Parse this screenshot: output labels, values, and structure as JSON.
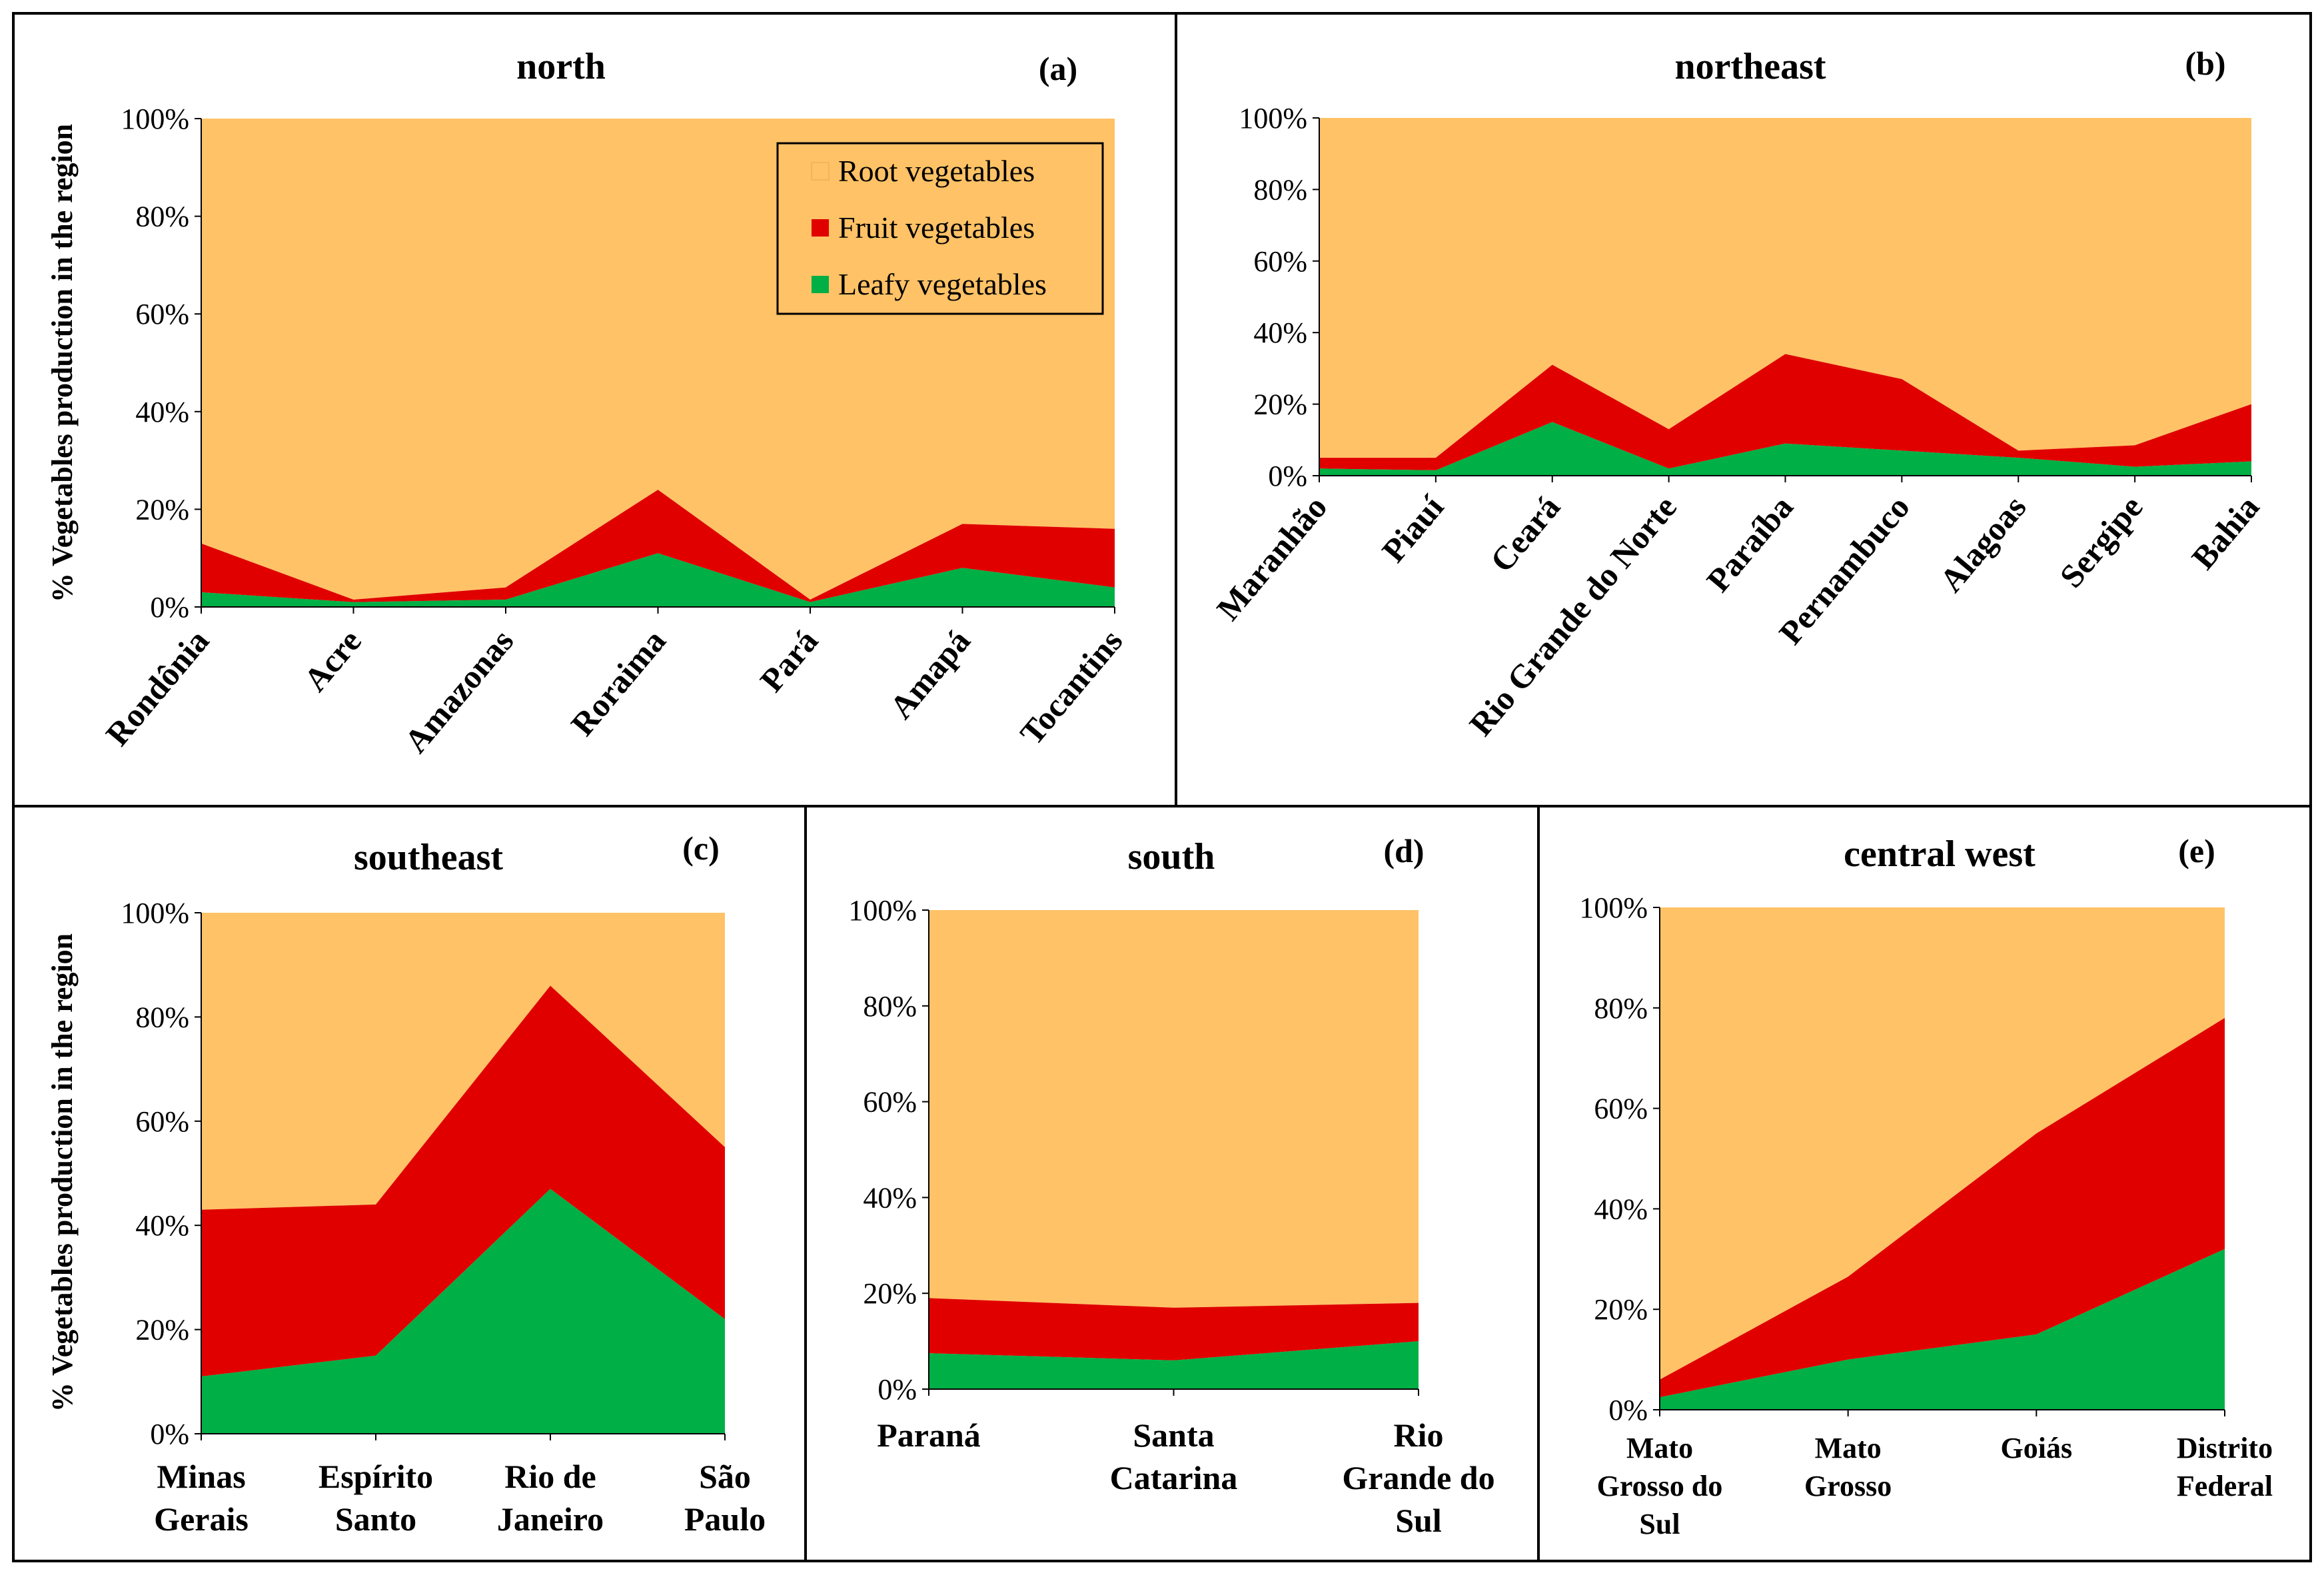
{
  "colors": {
    "root": "#FFC266",
    "fruit": "#E00000",
    "leafy": "#00AF45",
    "border": "#000000"
  },
  "legend": {
    "entries": [
      {
        "label": "Root vegetables",
        "color": "#FFC266"
      },
      {
        "label": "Fruit vegetables",
        "color": "#E00000"
      },
      {
        "label": "Leafy vegetables",
        "color": "#00AF45"
      }
    ]
  },
  "chart_data": [
    {
      "id": "a",
      "type": "area",
      "stacked": true,
      "title": "north",
      "panel_label": "(a)",
      "ylabel": "% Vegetables production  in the region",
      "ylim": [
        0,
        100
      ],
      "yticks": [
        "0%",
        "20%",
        "40%",
        "60%",
        "80%",
        "100%"
      ],
      "categories": [
        "Rondônia",
        "Acre",
        "Amazonas",
        "Roraima",
        "Pará",
        "Amapá",
        "Tocantins"
      ],
      "series": [
        {
          "name": "Leafy vegetables",
          "values": [
            3,
            1,
            1.5,
            11,
            1,
            8,
            4
          ]
        },
        {
          "name": "Fruit vegetables",
          "values": [
            10,
            0.5,
            2.5,
            13,
            0.5,
            9,
            12
          ]
        },
        {
          "name": "Root vegetables",
          "values": [
            87,
            98.5,
            96,
            76,
            98.5,
            83,
            84
          ]
        }
      ]
    },
    {
      "id": "b",
      "type": "area",
      "stacked": true,
      "title": "northeast",
      "panel_label": "(b)",
      "ylim": [
        0,
        100
      ],
      "yticks": [
        "0%",
        "20%",
        "40%",
        "60%",
        "80%",
        "100%"
      ],
      "categories": [
        "Maranhão",
        "Piauí",
        "Ceará",
        "Rio Grande do Norte",
        "Paraíba",
        "Pernambuco",
        "Alagoas",
        "Sergipe",
        "Bahia"
      ],
      "series": [
        {
          "name": "Leafy vegetables",
          "values": [
            2,
            1.5,
            15,
            2,
            9,
            7,
            5,
            2.5,
            4
          ]
        },
        {
          "name": "Fruit vegetables",
          "values": [
            3,
            3.5,
            16,
            11,
            25,
            20,
            2,
            6,
            16
          ]
        },
        {
          "name": "Root vegetables",
          "values": [
            95,
            95,
            69,
            87,
            66,
            73,
            93,
            91.5,
            80
          ]
        }
      ]
    },
    {
      "id": "c",
      "type": "area",
      "stacked": true,
      "title": "southeast",
      "panel_label": "(c)",
      "ylabel": "% Vegetables production  in the region",
      "ylim": [
        0,
        100
      ],
      "yticks": [
        "0%",
        "20%",
        "40%",
        "60%",
        "80%",
        "100%"
      ],
      "categories": [
        [
          "Minas",
          "Gerais"
        ],
        [
          "Espírito",
          "Santo"
        ],
        [
          "Rio de",
          "Janeiro"
        ],
        [
          "São",
          "Paulo"
        ]
      ],
      "series": [
        {
          "name": "Leafy vegetables",
          "values": [
            11,
            15,
            47,
            22
          ]
        },
        {
          "name": "Fruit vegetables",
          "values": [
            32,
            29,
            39,
            33
          ]
        },
        {
          "name": "Root vegetables",
          "values": [
            57,
            56,
            14,
            45
          ]
        }
      ]
    },
    {
      "id": "d",
      "type": "area",
      "stacked": true,
      "title": "south",
      "panel_label": "(d)",
      "ylim": [
        0,
        100
      ],
      "yticks": [
        "0%",
        "20%",
        "40%",
        "60%",
        "80%",
        "100%"
      ],
      "categories": [
        [
          "Paraná"
        ],
        [
          "Santa",
          "Catarina"
        ],
        [
          "Rio",
          "Grande do",
          "Sul"
        ]
      ],
      "series": [
        {
          "name": "Leafy vegetables",
          "values": [
            7.5,
            6,
            10
          ]
        },
        {
          "name": "Fruit vegetables",
          "values": [
            11.5,
            11,
            8
          ]
        },
        {
          "name": "Root vegetables",
          "values": [
            81,
            83,
            82
          ]
        }
      ]
    },
    {
      "id": "e",
      "type": "area",
      "stacked": true,
      "title": "central west",
      "panel_label": "(e)",
      "ylim": [
        0,
        100
      ],
      "yticks": [
        "0%",
        "20%",
        "40%",
        "60%",
        "80%",
        "100%"
      ],
      "categories": [
        [
          "Mato",
          "Grosso do",
          "Sul"
        ],
        [
          "Mato",
          "Grosso"
        ],
        [
          "Goiás"
        ],
        [
          "Distrito",
          "Federal"
        ]
      ],
      "series": [
        {
          "name": "Leafy vegetables",
          "values": [
            2.5,
            10,
            15,
            32
          ]
        },
        {
          "name": "Fruit vegetables",
          "values": [
            3.5,
            16.5,
            40,
            46
          ]
        },
        {
          "name": "Root vegetables",
          "values": [
            94,
            73.5,
            45,
            22
          ]
        }
      ]
    }
  ]
}
